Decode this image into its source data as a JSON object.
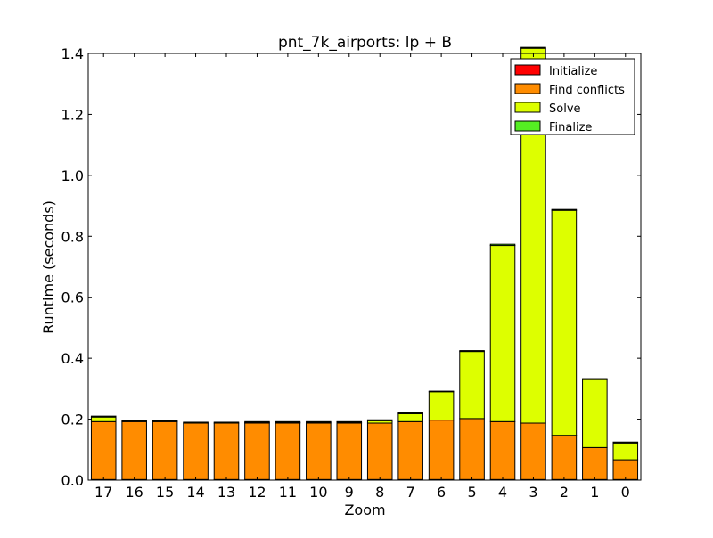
{
  "chart_data": {
    "type": "bar",
    "stacked": true,
    "title": "pnt_7k_airports: lp + B",
    "xlabel": "Zoom",
    "ylabel": "Runtime (seconds)",
    "ylim": [
      0,
      1.4
    ],
    "yticks": [
      "0.0",
      "0.2",
      "0.4",
      "0.6",
      "0.8",
      "1.0",
      "1.2",
      "1.4"
    ],
    "categories": [
      "17",
      "16",
      "15",
      "14",
      "13",
      "12",
      "11",
      "10",
      "9",
      "8",
      "7",
      "6",
      "5",
      "4",
      "3",
      "2",
      "1",
      "0"
    ],
    "legend_position": "top-right",
    "grid": false,
    "series": [
      {
        "name": "Initialize",
        "color": "#ff0000",
        "values": [
          0.002,
          0.002,
          0.002,
          0.002,
          0.002,
          0.002,
          0.002,
          0.002,
          0.002,
          0.002,
          0.002,
          0.002,
          0.002,
          0.002,
          0.002,
          0.002,
          0.002,
          0.002
        ]
      },
      {
        "name": "Find conflicts",
        "color": "#ff8c00",
        "values": [
          0.19,
          0.19,
          0.19,
          0.185,
          0.185,
          0.185,
          0.185,
          0.185,
          0.185,
          0.185,
          0.19,
          0.195,
          0.2,
          0.19,
          0.185,
          0.145,
          0.105,
          0.065
        ]
      },
      {
        "name": "Solve",
        "color": "#ddff00",
        "values": [
          0.015,
          0.0,
          0.0,
          0.0,
          0.0,
          0.002,
          0.002,
          0.002,
          0.002,
          0.008,
          0.026,
          0.093,
          0.22,
          0.578,
          1.23,
          0.738,
          0.223,
          0.055
        ]
      },
      {
        "name": "Finalize",
        "color": "#55ee22",
        "values": [
          0.003,
          0.003,
          0.003,
          0.003,
          0.003,
          0.003,
          0.003,
          0.003,
          0.003,
          0.003,
          0.003,
          0.002,
          0.003,
          0.004,
          0.003,
          0.003,
          0.003,
          0.003
        ]
      }
    ]
  }
}
